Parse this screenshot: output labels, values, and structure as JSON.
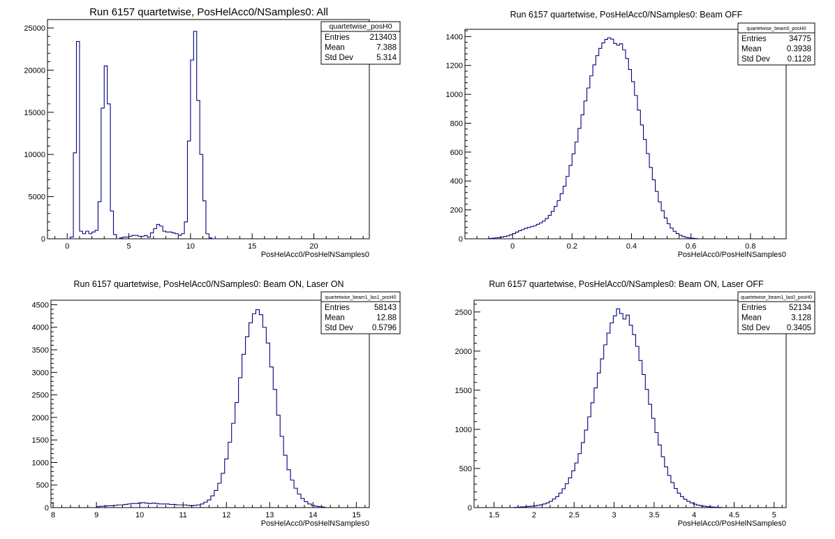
{
  "colors": {
    "line": "#000080",
    "frame": "#000000",
    "background": "#ffffff"
  },
  "chart_data": [
    {
      "type": "bar",
      "title": "Run 6157 quartetwise, PosHelAcc0/NSamples0: All",
      "xlabel": "PosHelAcc0/PosHelNSamples0",
      "ylabel": "",
      "xlim": [
        -1.6,
        24.5
      ],
      "ylim": [
        0,
        26000
      ],
      "xticks": [
        0,
        5,
        10,
        15,
        20
      ],
      "yticks": [
        0,
        5000,
        10000,
        15000,
        20000,
        25000
      ],
      "stats": {
        "name": "quartetwise_posH0",
        "entries": "213403",
        "mean": "7.388",
        "std_dev": "5.314",
        "entries_label": "Entries",
        "mean_label": "Mean",
        "std_label": "Std Dev"
      },
      "bin_start": 0,
      "bin_width": 0.25,
      "values": [
        0,
        200,
        10200,
        23400,
        900,
        600,
        900,
        600,
        800,
        1000,
        4400,
        15500,
        20500,
        16000,
        3300,
        500,
        0,
        100,
        200,
        200,
        300,
        400,
        400,
        300,
        300,
        400,
        200,
        700,
        1200,
        1700,
        1500,
        900,
        800,
        800,
        700,
        600,
        400,
        600,
        2000,
        11600,
        21200,
        24600,
        16400,
        10000,
        4500,
        600,
        100,
        0,
        0
      ]
    },
    {
      "type": "bar",
      "title": "Run 6157 quartetwise, PosHelAcc0/NSamples0: Beam OFF",
      "xlabel": "PosHelAcc0/PosHelNSamples0",
      "ylabel": "",
      "xlim": [
        -0.16,
        0.92
      ],
      "ylim": [
        0,
        1450
      ],
      "xticks": [
        0,
        0.2,
        0.4,
        0.6,
        0.8
      ],
      "yticks": [
        0,
        200,
        400,
        600,
        800,
        1000,
        1200,
        1400
      ],
      "stats": {
        "name": "quartetwise_beam0_posH0",
        "entries": "34775",
        "mean": "0.3938",
        "std_dev": "0.1128",
        "entries_label": "Entries",
        "mean_label": "Mean",
        "std_label": "Std Dev"
      },
      "bin_start": -0.08,
      "bin_width": 0.01,
      "values": [
        2,
        4,
        6,
        8,
        12,
        16,
        20,
        28,
        36,
        46,
        56,
        64,
        72,
        78,
        84,
        90,
        100,
        110,
        122,
        140,
        162,
        190,
        224,
        264,
        312,
        364,
        432,
        508,
        588,
        670,
        764,
        858,
        954,
        1044,
        1128,
        1204,
        1268,
        1318,
        1356,
        1380,
        1392,
        1382,
        1352,
        1340,
        1350,
        1308,
        1248,
        1172,
        1088,
        992,
        890,
        788,
        688,
        590,
        494,
        408,
        328,
        256,
        194,
        144,
        104,
        74,
        52,
        36,
        24,
        16,
        10,
        6,
        4,
        2
      ]
    },
    {
      "type": "bar",
      "title": "Run 6157 quartetwise, PosHelAcc0/NSamples0: Beam ON, Laser ON",
      "xlabel": "PosHelAcc0/PosHelNSamples0",
      "ylabel": "",
      "xlim": [
        7.95,
        15.3
      ],
      "ylim": [
        0,
        4600
      ],
      "xticks": [
        8,
        9,
        10,
        11,
        12,
        13,
        14,
        15
      ],
      "yticks": [
        0,
        500,
        1000,
        1500,
        2000,
        2500,
        3000,
        3500,
        4000,
        4500
      ],
      "stats": {
        "name": "quartetwise_beam1_las1_posH0",
        "entries": "58143",
        "mean": "12.88",
        "std_dev": "0.5796",
        "entries_label": "Entries",
        "mean_label": "Mean",
        "std_label": "Std Dev"
      },
      "bin_start": 9.0,
      "bin_width": 0.08,
      "values": [
        20,
        30,
        30,
        40,
        40,
        50,
        60,
        60,
        70,
        80,
        90,
        90,
        100,
        110,
        100,
        90,
        100,
        90,
        80,
        80,
        80,
        70,
        70,
        60,
        60,
        60,
        50,
        40,
        50,
        60,
        80,
        120,
        170,
        260,
        380,
        540,
        760,
        1080,
        1450,
        1870,
        2330,
        2880,
        3400,
        3790,
        4100,
        4300,
        4390,
        4280,
        4000,
        3650,
        3120,
        2620,
        2050,
        1580,
        1160,
        840,
        610,
        430,
        300,
        200,
        130,
        80,
        50,
        30,
        20,
        10
      ]
    },
    {
      "type": "bar",
      "title": "Run 6157 quartetwise, PosHelAcc0/NSamples0: Beam ON, Laser OFF",
      "xlabel": "PosHelAcc0/PosHelNSamples0",
      "ylabel": "",
      "xlim": [
        1.25,
        5.15
      ],
      "ylim": [
        0,
        2650
      ],
      "xticks": [
        1.5,
        2,
        2.5,
        3,
        3.5,
        4,
        4.5,
        5
      ],
      "yticks": [
        0,
        500,
        1000,
        1500,
        2000,
        2500
      ],
      "stats": {
        "name": "quartetwise_beam1_las0_posH0",
        "entries": "52134",
        "mean": "3.128",
        "std_dev": "0.3405",
        "entries_label": "Entries",
        "mean_label": "Mean",
        "std_label": "Std Dev"
      },
      "bin_start": 1.75,
      "bin_width": 0.04,
      "values": [
        3,
        5,
        8,
        10,
        14,
        18,
        22,
        28,
        36,
        46,
        60,
        80,
        110,
        140,
        185,
        240,
        305,
        380,
        470,
        570,
        690,
        830,
        990,
        1160,
        1340,
        1530,
        1720,
        1900,
        2080,
        2230,
        2360,
        2450,
        2540,
        2480,
        2410,
        2460,
        2330,
        2210,
        2060,
        1880,
        1700,
        1510,
        1320,
        1140,
        960,
        800,
        650,
        520,
        410,
        320,
        245,
        185,
        140,
        105,
        80,
        60,
        44,
        32,
        24,
        17,
        12,
        8,
        6,
        4,
        3
      ]
    }
  ]
}
